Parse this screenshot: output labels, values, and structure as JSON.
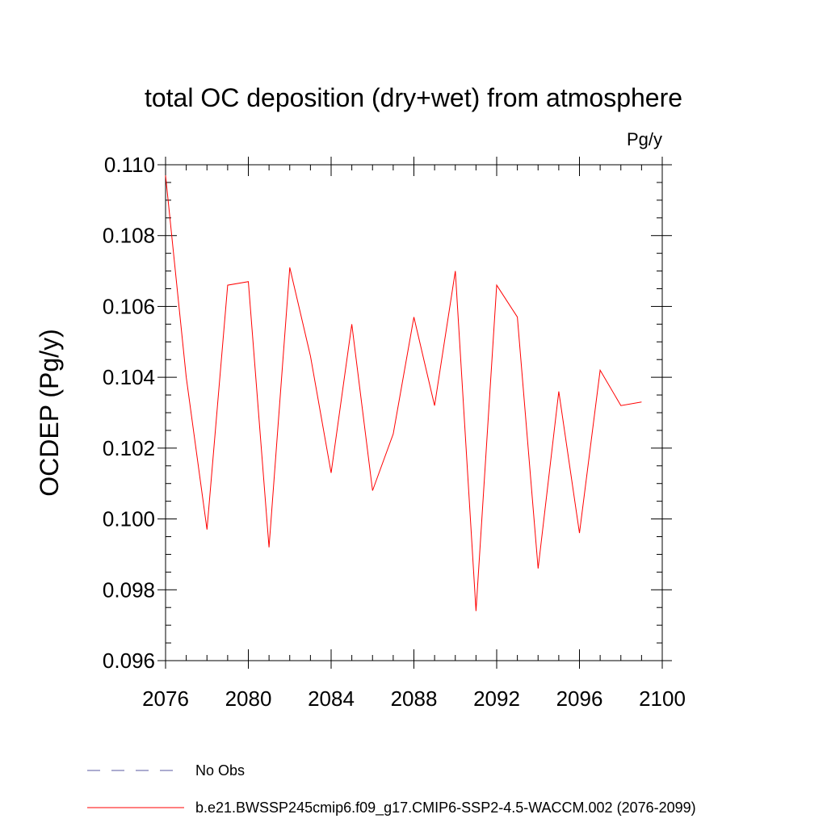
{
  "chart_data": {
    "type": "line",
    "title": "total OC deposition (dry+wet) from atmosphere",
    "units_label": "Pg/y",
    "xlabel": "",
    "ylabel": "OCDEP  (Pg/y)",
    "xlim": [
      2076,
      2100
    ],
    "ylim": [
      0.096,
      0.11
    ],
    "x_ticks": [
      2076,
      2080,
      2084,
      2088,
      2092,
      2096,
      2100
    ],
    "x_tick_labels": [
      "2076",
      "2080",
      "2084",
      "2088",
      "2092",
      "2096",
      "2100"
    ],
    "y_ticks": [
      0.096,
      0.098,
      0.1,
      0.102,
      0.104,
      0.106,
      0.108,
      0.11
    ],
    "y_tick_labels": [
      "0.096",
      "0.098",
      "0.100",
      "0.102",
      "0.104",
      "0.106",
      "0.108",
      "0.110"
    ],
    "series": [
      {
        "name": "b.e21.BWSSP245cmip6.f09_g17.CMIP6-SSP2-4.5-WACCM.002 (2076-2099)",
        "color": "#ff0000",
        "style": "solid",
        "x": [
          2076,
          2077,
          2078,
          2079,
          2080,
          2081,
          2082,
          2083,
          2084,
          2085,
          2086,
          2087,
          2088,
          2089,
          2090,
          2091,
          2092,
          2093,
          2094,
          2095,
          2096,
          2097,
          2098,
          2099
        ],
        "y": [
          0.1097,
          0.104,
          0.0997,
          0.1066,
          0.1067,
          0.0992,
          0.1071,
          0.1046,
          0.1013,
          0.1055,
          0.1008,
          0.1024,
          0.1057,
          0.1032,
          0.107,
          0.0974,
          0.1066,
          0.1057,
          0.0986,
          0.1036,
          0.0996,
          0.1042,
          0.1032,
          0.1033
        ]
      }
    ],
    "legend": [
      {
        "label": "No Obs",
        "color": "#5a5aa0",
        "style": "dashed"
      },
      {
        "label": "b.e21.BWSSP245cmip6.f09_g17.CMIP6-SSP2-4.5-WACCM.002 (2076-2099)",
        "color": "#ff0000",
        "style": "solid"
      }
    ],
    "legend_position": "bottom-left",
    "grid": false
  }
}
